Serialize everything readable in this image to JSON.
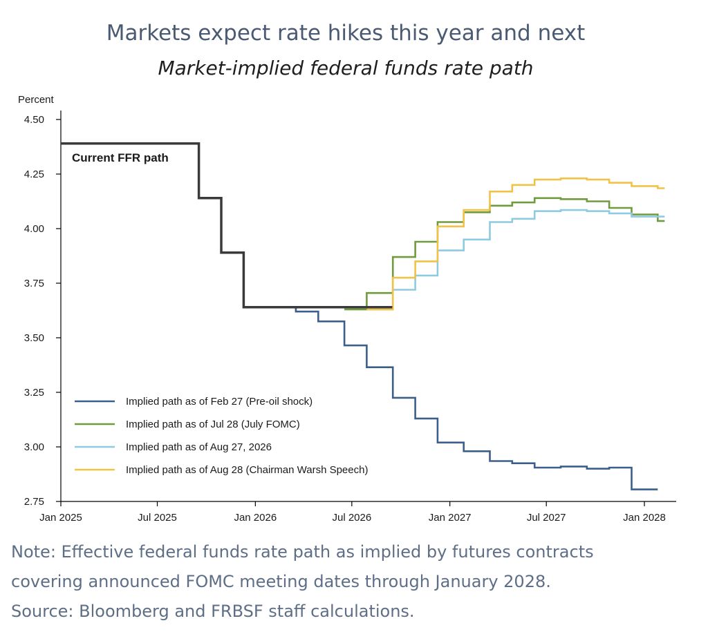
{
  "header": {
    "title": "Markets expect rate hikes this year and next",
    "subtitle": "Market-implied federal funds rate path"
  },
  "footer": {
    "note_line1": "Note: Effective federal funds rate path as implied by futures contracts",
    "note_line2": "covering announced FOMC meeting dates through January 2028.",
    "source": "Source: Bloomberg and FRBSF staff calculations."
  },
  "colors": {
    "current": "#3a3a3a",
    "feb27": "#3b5f8a",
    "jul28": "#6f9b3c",
    "aug27": "#8ecae0",
    "aug28": "#f0c246"
  },
  "chart_data": {
    "type": "line",
    "step": true,
    "ylabel": "Percent",
    "ylim": [
      2.75,
      4.5
    ],
    "yticks": [
      "4.50",
      "4.25",
      "4.00",
      "3.75",
      "3.50",
      "3.25",
      "3.00",
      "2.75"
    ],
    "xlim": [
      "2025-01-01",
      "2028-02-10"
    ],
    "xticks": [
      {
        "date": "2025-01-01",
        "label": "Jan 2025"
      },
      {
        "date": "2025-07-01",
        "label": "Jul 2025"
      },
      {
        "date": "2026-01-01",
        "label": "Jan 2026"
      },
      {
        "date": "2026-07-01",
        "label": "Jul 2026"
      },
      {
        "date": "2027-01-01",
        "label": "Jan 2027"
      },
      {
        "date": "2027-07-01",
        "label": "Jul 2027"
      },
      {
        "date": "2028-01-01",
        "label": "Jan 2028"
      }
    ],
    "annotation": "Current FFR path",
    "legend_placement": "bottom-left",
    "series": [
      {
        "name": "Current FFR path",
        "color_key": "current",
        "points": [
          [
            "2025-01-01",
            4.39
          ],
          [
            "2025-09-17",
            4.39
          ],
          [
            "2025-09-17",
            4.14
          ],
          [
            "2025-10-29",
            4.14
          ],
          [
            "2025-10-29",
            3.89
          ],
          [
            "2025-12-10",
            3.89
          ],
          [
            "2025-12-10",
            3.64
          ],
          [
            "2026-09-15",
            3.64
          ]
        ]
      },
      {
        "name": "Implied path as of Feb 27 (Pre-oil shock)",
        "color_key": "feb27",
        "points": [
          [
            "2026-03-18",
            3.64
          ],
          [
            "2026-03-18",
            3.62
          ],
          [
            "2026-04-29",
            3.62
          ],
          [
            "2026-04-29",
            3.575
          ],
          [
            "2026-06-17",
            3.575
          ],
          [
            "2026-06-17",
            3.465
          ],
          [
            "2026-07-29",
            3.465
          ],
          [
            "2026-07-29",
            3.365
          ],
          [
            "2026-09-16",
            3.365
          ],
          [
            "2026-09-16",
            3.225
          ],
          [
            "2026-10-28",
            3.225
          ],
          [
            "2026-10-28",
            3.13
          ],
          [
            "2026-12-09",
            3.13
          ],
          [
            "2026-12-09",
            3.02
          ],
          [
            "2027-01-27",
            3.02
          ],
          [
            "2027-01-27",
            2.98
          ],
          [
            "2027-03-17",
            2.98
          ],
          [
            "2027-03-17",
            2.935
          ],
          [
            "2027-04-28",
            2.935
          ],
          [
            "2027-04-28",
            2.925
          ],
          [
            "2027-06-09",
            2.925
          ],
          [
            "2027-06-09",
            2.905
          ],
          [
            "2027-07-28",
            2.905
          ],
          [
            "2027-07-28",
            2.91
          ],
          [
            "2027-09-15",
            2.91
          ],
          [
            "2027-09-15",
            2.9
          ],
          [
            "2027-10-27",
            2.9
          ],
          [
            "2027-10-27",
            2.905
          ],
          [
            "2027-12-08",
            2.905
          ],
          [
            "2027-12-08",
            2.805
          ],
          [
            "2028-01-26",
            2.805
          ]
        ]
      },
      {
        "name": "Implied path as of Jul 28 (July FOMC)",
        "color_key": "jul28",
        "points": [
          [
            "2026-06-17",
            3.63
          ],
          [
            "2026-07-29",
            3.63
          ],
          [
            "2026-07-29",
            3.705
          ],
          [
            "2026-09-16",
            3.705
          ],
          [
            "2026-09-16",
            3.87
          ],
          [
            "2026-10-28",
            3.87
          ],
          [
            "2026-10-28",
            3.94
          ],
          [
            "2026-12-09",
            3.94
          ],
          [
            "2026-12-09",
            4.03
          ],
          [
            "2027-01-27",
            4.03
          ],
          [
            "2027-01-27",
            4.075
          ],
          [
            "2027-03-17",
            4.075
          ],
          [
            "2027-03-17",
            4.105
          ],
          [
            "2027-04-28",
            4.105
          ],
          [
            "2027-04-28",
            4.12
          ],
          [
            "2027-06-09",
            4.12
          ],
          [
            "2027-06-09",
            4.14
          ],
          [
            "2027-07-28",
            4.14
          ],
          [
            "2027-07-28",
            4.135
          ],
          [
            "2027-09-15",
            4.135
          ],
          [
            "2027-09-15",
            4.125
          ],
          [
            "2027-10-27",
            4.125
          ],
          [
            "2027-10-27",
            4.095
          ],
          [
            "2027-12-08",
            4.095
          ],
          [
            "2027-12-08",
            4.065
          ],
          [
            "2028-01-26",
            4.065
          ],
          [
            "2028-01-26",
            4.035
          ],
          [
            "2028-02-08",
            4.035
          ]
        ]
      },
      {
        "name": "Implied path as of Aug 27, 2026",
        "color_key": "aug27",
        "points": [
          [
            "2026-07-29",
            3.63
          ],
          [
            "2026-09-16",
            3.63
          ],
          [
            "2026-09-16",
            3.72
          ],
          [
            "2026-10-28",
            3.72
          ],
          [
            "2026-10-28",
            3.785
          ],
          [
            "2026-12-09",
            3.785
          ],
          [
            "2026-12-09",
            3.9
          ],
          [
            "2027-01-27",
            3.9
          ],
          [
            "2027-01-27",
            3.95
          ],
          [
            "2027-03-17",
            3.95
          ],
          [
            "2027-03-17",
            4.03
          ],
          [
            "2027-04-28",
            4.03
          ],
          [
            "2027-04-28",
            4.045
          ],
          [
            "2027-06-09",
            4.045
          ],
          [
            "2027-06-09",
            4.08
          ],
          [
            "2027-07-28",
            4.08
          ],
          [
            "2027-07-28",
            4.085
          ],
          [
            "2027-09-15",
            4.085
          ],
          [
            "2027-09-15",
            4.08
          ],
          [
            "2027-10-27",
            4.08
          ],
          [
            "2027-10-27",
            4.07
          ],
          [
            "2027-12-08",
            4.07
          ],
          [
            "2027-12-08",
            4.055
          ],
          [
            "2028-02-08",
            4.055
          ]
        ]
      },
      {
        "name": "Implied path as of Aug 28 (Chairman Warsh Speech)",
        "color_key": "aug28",
        "points": [
          [
            "2026-07-29",
            3.63
          ],
          [
            "2026-09-16",
            3.63
          ],
          [
            "2026-09-16",
            3.775
          ],
          [
            "2026-10-28",
            3.775
          ],
          [
            "2026-10-28",
            3.85
          ],
          [
            "2026-12-09",
            3.85
          ],
          [
            "2026-12-09",
            4.01
          ],
          [
            "2027-01-27",
            4.01
          ],
          [
            "2027-01-27",
            4.085
          ],
          [
            "2027-03-17",
            4.085
          ],
          [
            "2027-03-17",
            4.17
          ],
          [
            "2027-04-28",
            4.17
          ],
          [
            "2027-04-28",
            4.2
          ],
          [
            "2027-06-09",
            4.2
          ],
          [
            "2027-06-09",
            4.225
          ],
          [
            "2027-07-28",
            4.225
          ],
          [
            "2027-07-28",
            4.23
          ],
          [
            "2027-09-15",
            4.23
          ],
          [
            "2027-09-15",
            4.225
          ],
          [
            "2027-10-27",
            4.225
          ],
          [
            "2027-10-27",
            4.21
          ],
          [
            "2027-12-08",
            4.21
          ],
          [
            "2027-12-08",
            4.195
          ],
          [
            "2028-01-26",
            4.195
          ],
          [
            "2028-01-26",
            4.185
          ],
          [
            "2028-02-08",
            4.185
          ]
        ]
      }
    ],
    "legend": [
      {
        "label": "Implied path as of Feb 27 (Pre-oil shock)",
        "color_key": "feb27"
      },
      {
        "label": "Implied path as of Jul 28 (July FOMC)",
        "color_key": "jul28"
      },
      {
        "label": "Implied path as of Aug 27, 2026",
        "color_key": "aug27"
      },
      {
        "label": "Implied path as of Aug 28 (Chairman Warsh Speech)",
        "color_key": "aug28"
      }
    ]
  }
}
